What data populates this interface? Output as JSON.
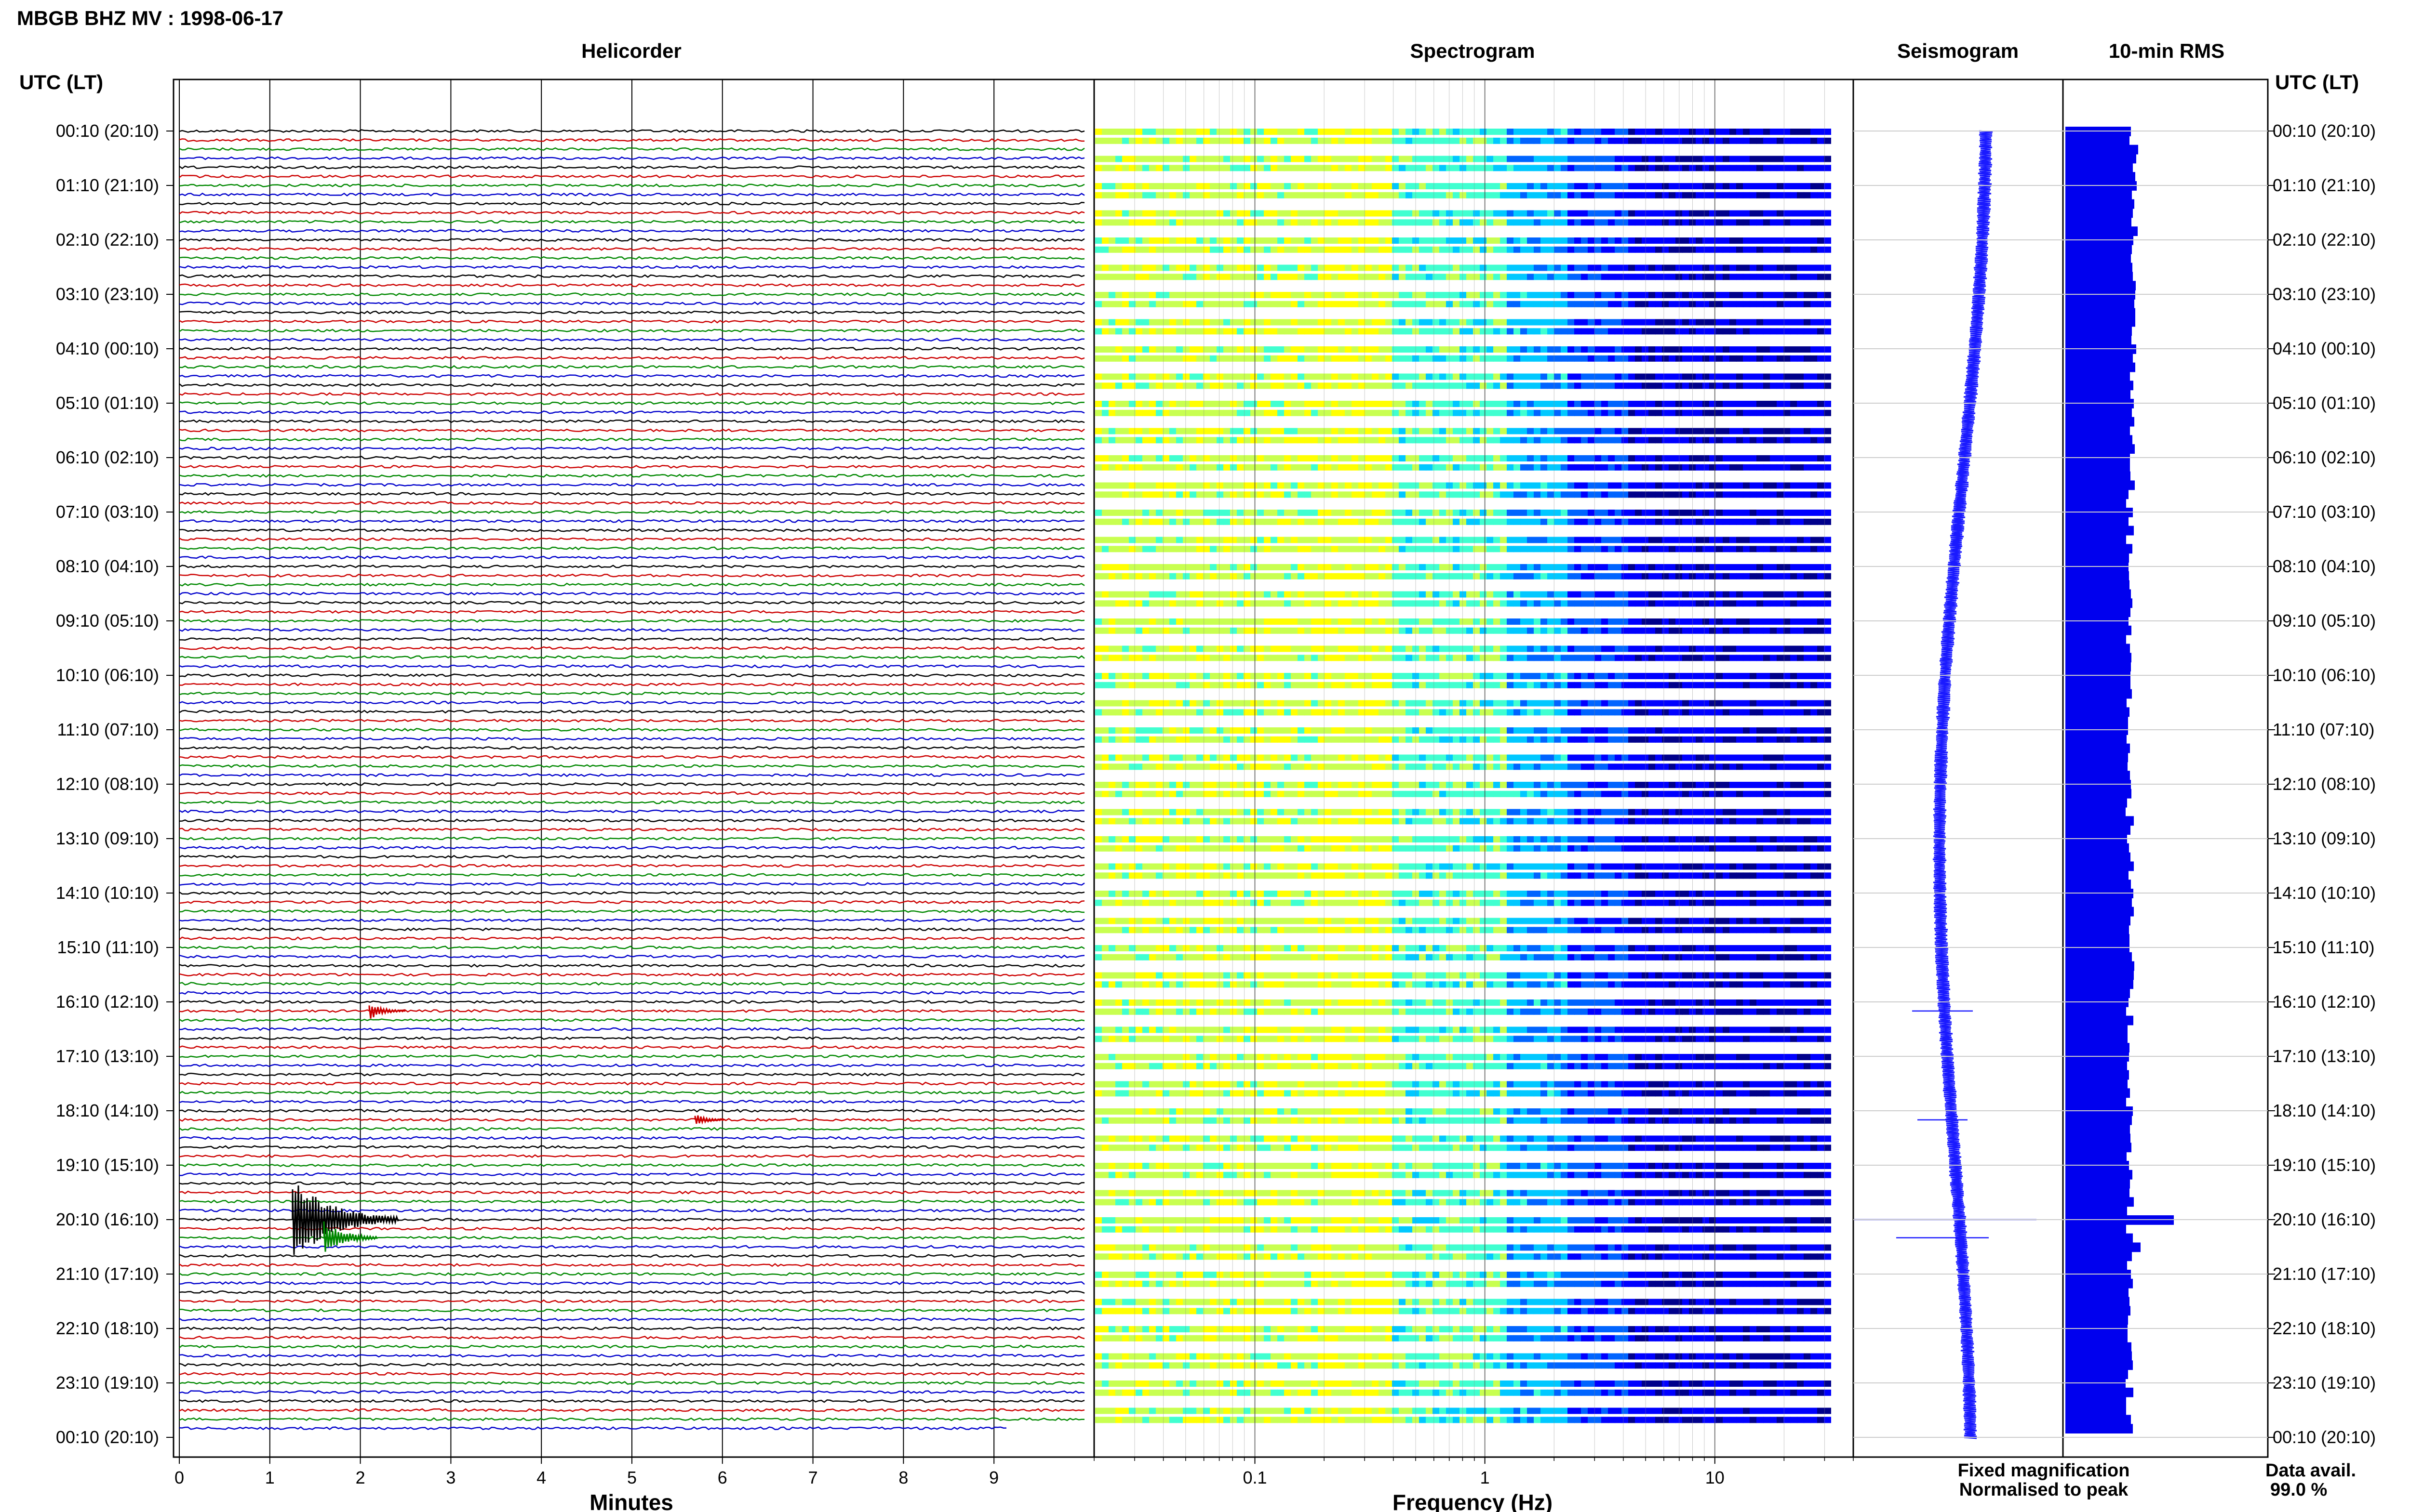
{
  "title": "MBGB BHZ MV : 1998-06-17",
  "panels": {
    "helicorder": "Helicorder",
    "spectrogram": "Spectrogram",
    "seismogram": "Seismogram",
    "rms": "10-min RMS"
  },
  "axis_labels": {
    "time_header_left": "UTC (LT)",
    "time_header_right": "UTC (LT)",
    "helicorder_x": "Minutes",
    "spectrogram_x": "Frequency (Hz)"
  },
  "legend": {
    "fixed": "Fixed magnification",
    "normalised": "Normalised to peak",
    "data_avail_label": "Data avail.",
    "data_avail_value": "99.0 %"
  },
  "colors": {
    "fixed": "#1a1aff",
    "normalised": "#ff1a1a",
    "rms_bar": "#0000ee",
    "trace_cycle": [
      "#000000",
      "#cc0000",
      "#008800",
      "#0000cc"
    ]
  },
  "chart_data": [
    {
      "type": "line",
      "name": "helicorder",
      "x_ticks": [
        0,
        1,
        2,
        3,
        4,
        5,
        6,
        7,
        8,
        9
      ],
      "xlim": [
        0,
        10
      ],
      "rows_per_hour": 6,
      "row_count": 144,
      "events": [
        {
          "time": "16:20",
          "minute": 2.1,
          "amplitude": 0.6
        },
        {
          "time": "18:20",
          "minute": 5.7,
          "amplitude": 0.4
        },
        {
          "time": "20:10",
          "minute": 1.25,
          "amplitude": 3.0
        },
        {
          "time": "20:30",
          "minute": 1.6,
          "amplitude": 1.2
        }
      ]
    },
    {
      "type": "heatmap",
      "name": "spectrogram",
      "x_scale": "log",
      "xlim": [
        0.02,
        40
      ],
      "x_ticks": [
        0.1,
        1,
        10
      ],
      "colormap": [
        "#00008b",
        "#0000ff",
        "#0064ff",
        "#00c8ff",
        "#40ffd0",
        "#c8ff50",
        "#ffff00"
      ]
    },
    {
      "type": "line",
      "name": "seismogram"
    },
    {
      "type": "bar",
      "name": "rms",
      "peak_time": "20:10",
      "peak_relative": 1.8
    }
  ],
  "time_ticks": [
    {
      "utc_lt": "00:10 (20:10)"
    },
    {
      "utc_lt": "01:10 (21:10)"
    },
    {
      "utc_lt": "02:10 (22:10)"
    },
    {
      "utc_lt": "03:10 (23:10)"
    },
    {
      "utc_lt": "04:10 (00:10)"
    },
    {
      "utc_lt": "05:10 (01:10)"
    },
    {
      "utc_lt": "06:10 (02:10)"
    },
    {
      "utc_lt": "07:10 (03:10)"
    },
    {
      "utc_lt": "08:10 (04:10)"
    },
    {
      "utc_lt": "09:10 (05:10)"
    },
    {
      "utc_lt": "10:10 (06:10)"
    },
    {
      "utc_lt": "11:10 (07:10)"
    },
    {
      "utc_lt": "12:10 (08:10)"
    },
    {
      "utc_lt": "13:10 (09:10)"
    },
    {
      "utc_lt": "14:10 (10:10)"
    },
    {
      "utc_lt": "15:10 (11:10)"
    },
    {
      "utc_lt": "16:10 (12:10)"
    },
    {
      "utc_lt": "17:10 (13:10)"
    },
    {
      "utc_lt": "18:10 (14:10)"
    },
    {
      "utc_lt": "19:10 (15:10)"
    },
    {
      "utc_lt": "20:10 (16:10)"
    },
    {
      "utc_lt": "21:10 (17:10)"
    },
    {
      "utc_lt": "22:10 (18:10)"
    },
    {
      "utc_lt": "23:10 (19:10)"
    },
    {
      "utc_lt": "00:10 (20:10)"
    }
  ]
}
